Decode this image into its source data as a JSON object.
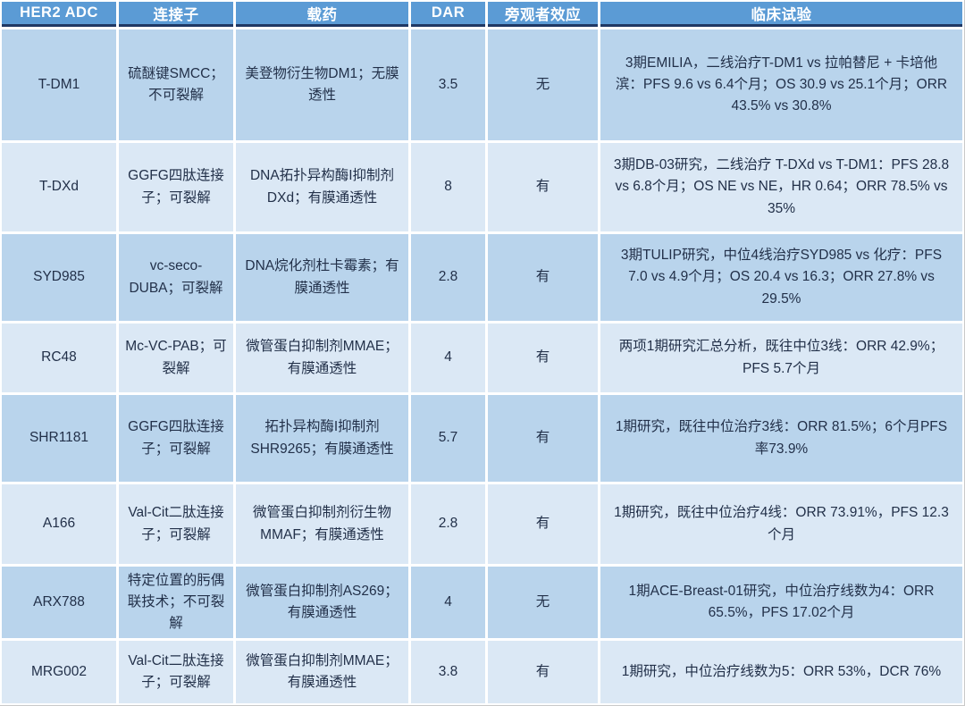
{
  "table": {
    "headers": [
      "HER2 ADC",
      "连接子",
      "载药",
      "DAR",
      "旁观者效应",
      "临床试验"
    ],
    "rows": [
      {
        "adc": "T-DM1",
        "linker": "硫醚键SMCC；不可裂解",
        "payload": "美登物衍生物DM1；无膜透性",
        "dar": "3.5",
        "bystander": "无",
        "clinical": "3期EMILIA，二线治疗T-DM1 vs 拉帕替尼 + 卡培他滨：PFS 9.6 vs 6.4个月；OS 30.9 vs 25.1个月；ORR 43.5% vs 30.8%"
      },
      {
        "adc": "T-DXd",
        "linker": "GGFG四肽连接子；可裂解",
        "payload": "DNA拓扑异构酶I抑制剂DXd；有膜通透性",
        "dar": "8",
        "bystander": "有",
        "clinical": "3期DB-03研究，二线治疗 T-DXd vs T-DM1：PFS 28.8 vs 6.8个月；OS NE vs NE，HR 0.64；ORR 78.5% vs 35%"
      },
      {
        "adc": "SYD985",
        "linker": "vc-seco-DUBA；可裂解",
        "payload": "DNA烷化剂杜卡霉素；有膜通透性",
        "dar": "2.8",
        "bystander": "有",
        "clinical": "3期TULIP研究，中位4线治疗SYD985 vs 化疗：PFS 7.0 vs 4.9个月；OS 20.4 vs 16.3；ORR 27.8% vs 29.5%"
      },
      {
        "adc": "RC48",
        "linker": "Mc-VC-PAB；可裂解",
        "payload": "微管蛋白抑制剂MMAE；有膜通透性",
        "dar": "4",
        "bystander": "有",
        "clinical": "两项1期研究汇总分析，既往中位3线：ORR 42.9%；PFS 5.7个月"
      },
      {
        "adc": "SHR1181",
        "linker": "GGFG四肽连接子；可裂解",
        "payload": "拓扑异构酶I抑制剂SHR9265；有膜通透性",
        "dar": "5.7",
        "bystander": "有",
        "clinical": "1期研究，既往中位治疗3线：ORR 81.5%；6个月PFS率73.9%"
      },
      {
        "adc": "A166",
        "linker": "Val-Cit二肽连接子；可裂解",
        "payload": "微管蛋白抑制剂衍生物MMAF；有膜通透性",
        "dar": "2.8",
        "bystander": "有",
        "clinical": "1期研究，既往中位治疗4线：ORR 73.91%，PFS 12.3个月"
      },
      {
        "adc": "ARX788",
        "linker": "特定位置的肟偶联技术；不可裂解",
        "payload": "微管蛋白抑制剂AS269；有膜通透性",
        "dar": "4",
        "bystander": "无",
        "clinical": "1期ACE-Breast-01研究，中位治疗线数为4：ORR 65.5%，PFS 17.02个月"
      },
      {
        "adc": "MRG002",
        "linker": "Val-Cit二肽连接子；可裂解",
        "payload": "微管蛋白抑制剂MMAE；有膜通透性",
        "dar": "3.8",
        "bystander": "有",
        "clinical": "1期研究，中位治疗线数为5：ORR 53%，DCR 76%"
      }
    ]
  },
  "colors": {
    "header_bg": "#5b9bd5",
    "header_text": "#ffffff",
    "header_underline": "#1f3864",
    "row_odd_bg": "#b9d4ec",
    "row_even_bg": "#dbe8f5",
    "body_text": "#223049",
    "divider": "#ffffff"
  }
}
